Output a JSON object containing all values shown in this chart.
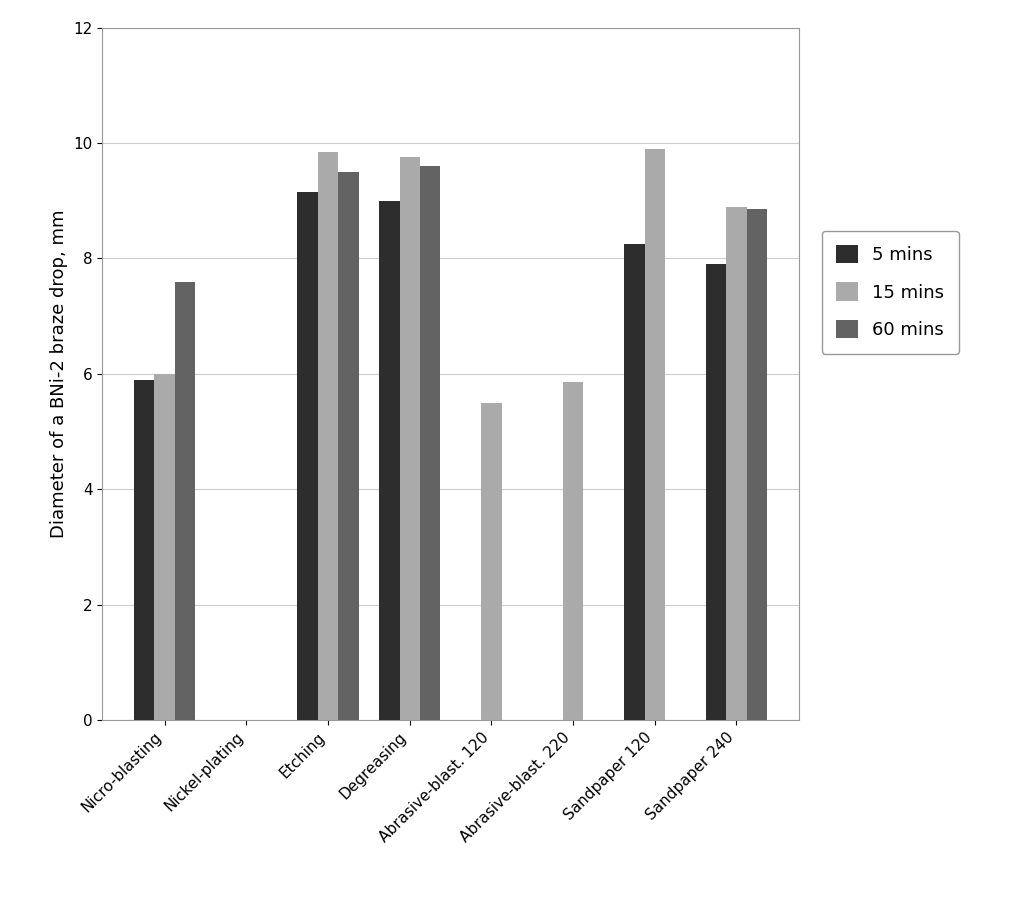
{
  "categories": [
    "Nicro-blasting",
    "Nickel-plating",
    "Etching",
    "Degreasing",
    "Abrasive-blast. 120",
    "Abrasive-blast. 220",
    "Sandpaper 120",
    "Sandpaper 240"
  ],
  "series": {
    "5 mins": [
      5.9,
      0.0,
      9.15,
      9.0,
      0.0,
      0.0,
      8.25,
      7.9
    ],
    "15 mins": [
      6.0,
      0.0,
      9.85,
      9.75,
      5.5,
      5.85,
      9.9,
      8.9
    ],
    "60 mins": [
      7.6,
      0.0,
      9.5,
      9.6,
      0.0,
      0.0,
      0.0,
      8.85
    ]
  },
  "colors": {
    "5 mins": "#2d2d2d",
    "15 mins": "#aaaaaa",
    "60 mins": "#636363"
  },
  "ylabel": "Diameter of a BNi-2 braze drop, mm",
  "ylim": [
    0,
    12
  ],
  "yticks": [
    0,
    2,
    4,
    6,
    8,
    10,
    12
  ],
  "legend_labels": [
    "5 mins",
    "15 mins",
    "60 mins"
  ],
  "background_color": "#ffffff",
  "grid_color": "#cccccc",
  "bar_width": 0.25,
  "figsize": [
    10.24,
    9.23
  ],
  "dpi": 100
}
